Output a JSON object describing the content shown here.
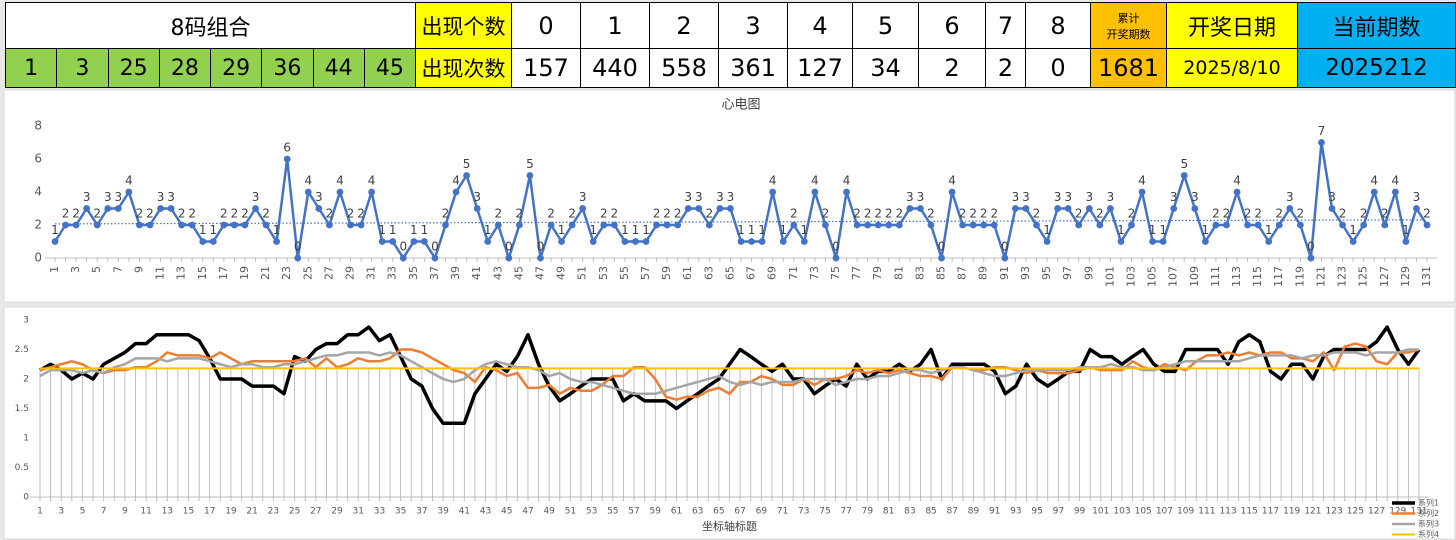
{
  "table": {
    "combo_label": "8码组合",
    "count_label": "出现个数",
    "counts_header": [
      0,
      1,
      2,
      3,
      4,
      5,
      6,
      7,
      8
    ],
    "total_label": [
      "累计",
      "开奖期数"
    ],
    "date_label": "开奖日期",
    "period_label": "当前期数",
    "combo": [
      1,
      3,
      25,
      28,
      29,
      36,
      44,
      45
    ],
    "times_label": "出现次数",
    "times": [
      157,
      440,
      558,
      361,
      127,
      34,
      2,
      2,
      0
    ],
    "total": 1681,
    "date": "2025/8/10",
    "period": 2025212
  },
  "chart_data": [
    {
      "type": "line",
      "title": "心电图",
      "color": "#4472c4",
      "markers": true,
      "data_labels": true,
      "trendline": "linear",
      "ylim": [
        0,
        8
      ],
      "yticks": [
        0,
        2,
        4,
        6,
        8
      ],
      "grid": false,
      "categories": [
        1,
        null,
        3,
        null,
        5,
        null,
        7,
        null,
        9,
        null,
        11,
        null,
        13,
        null,
        15,
        null,
        17,
        null,
        19,
        null,
        21,
        null,
        23,
        null,
        25,
        null,
        27,
        null,
        29,
        null,
        31,
        null,
        33,
        null,
        35,
        null,
        37,
        null,
        39,
        null,
        41,
        null,
        43,
        null,
        45,
        null,
        47,
        null,
        49,
        null,
        51,
        null,
        53,
        null,
        55,
        null,
        57,
        null,
        59,
        null,
        61,
        null,
        63,
        null,
        65,
        null,
        67,
        null,
        69,
        null,
        71,
        null,
        73,
        null,
        75,
        null,
        77,
        null,
        79,
        null,
        81,
        null,
        83,
        null,
        85,
        null,
        87,
        null,
        89,
        null,
        91,
        null,
        93,
        null,
        95,
        null,
        97,
        null,
        99,
        null,
        101,
        null,
        103,
        null,
        105,
        null,
        107,
        null,
        109,
        null,
        111,
        null,
        113,
        null,
        115,
        null,
        117,
        null,
        119,
        null,
        121,
        null,
        123,
        null,
        125,
        null,
        127,
        null,
        129,
        null,
        131
      ],
      "values": [
        1,
        2,
        2,
        3,
        2,
        3,
        3,
        4,
        2,
        2,
        3,
        3,
        2,
        2,
        1,
        1,
        2,
        2,
        2,
        3,
        2,
        1,
        6,
        0,
        4,
        3,
        2,
        4,
        2,
        2,
        4,
        1,
        1,
        0,
        1,
        1,
        0,
        2,
        4,
        5,
        3,
        1,
        2,
        0,
        2,
        5,
        0,
        2,
        1,
        2,
        3,
        1,
        2,
        2,
        1,
        1,
        1,
        2,
        2,
        2,
        3,
        3,
        2,
        3,
        3,
        1,
        1,
        1,
        4,
        1,
        2,
        1,
        4,
        2,
        0,
        4,
        2,
        2,
        2,
        2,
        2,
        3,
        3,
        2,
        0,
        4,
        2,
        2,
        2,
        2,
        0,
        3,
        3,
        2,
        1,
        3,
        3,
        2,
        3,
        2,
        3,
        1,
        2,
        4,
        1,
        1,
        3,
        5,
        3,
        1,
        2,
        2,
        4,
        2,
        2,
        1,
        2,
        3,
        2,
        0,
        7,
        3,
        2,
        1,
        2,
        4,
        2,
        4,
        1,
        3,
        2
      ]
    },
    {
      "type": "line",
      "x_label": "坐标轴标题",
      "legend": "bottom-right",
      "drop_lines": true,
      "ylim": [
        0,
        3
      ],
      "yticks": [
        0,
        0.5,
        1,
        1.5,
        2,
        2.5,
        3
      ],
      "grid": false,
      "categories": [
        1,
        null,
        3,
        null,
        5,
        null,
        7,
        null,
        9,
        null,
        11,
        null,
        13,
        null,
        15,
        null,
        17,
        null,
        19,
        null,
        21,
        null,
        23,
        null,
        25,
        null,
        27,
        null,
        29,
        null,
        31,
        null,
        33,
        null,
        35,
        null,
        37,
        null,
        39,
        null,
        41,
        null,
        43,
        null,
        45,
        null,
        47,
        null,
        49,
        null,
        51,
        null,
        53,
        null,
        55,
        null,
        57,
        null,
        59,
        null,
        61,
        null,
        63,
        null,
        65,
        null,
        67,
        null,
        69,
        null,
        71,
        null,
        73,
        null,
        75,
        null,
        77,
        null,
        79,
        null,
        81,
        null,
        83,
        null,
        85,
        null,
        87,
        null,
        89,
        null,
        91,
        null,
        93,
        null,
        95,
        null,
        97,
        null,
        99,
        null,
        101,
        null,
        103,
        null,
        105,
        null,
        107,
        null,
        109,
        null,
        111,
        null,
        113,
        null,
        115,
        null,
        117,
        null,
        119,
        null,
        121,
        null,
        123,
        null,
        125,
        null,
        127,
        null,
        129,
        null,
        131
      ],
      "series": [
        {
          "name": "系列1",
          "color": "#000000",
          "values": [
            2.15,
            2.25,
            2.15,
            2,
            2.1,
            2,
            2.25,
            2.35,
            2.45,
            2.6,
            2.6,
            2.75,
            2.75,
            2.75,
            2.75,
            2.65,
            2.35,
            2,
            2,
            2,
            1.88,
            1.88,
            1.88,
            1.75,
            2.38,
            2.3,
            2.5,
            2.6,
            2.6,
            2.75,
            2.75,
            2.88,
            2.65,
            2.75,
            2.38,
            2,
            1.88,
            1.5,
            1.25,
            1.25,
            1.25,
            1.75,
            2,
            2.25,
            2.13,
            2.38,
            2.75,
            2.25,
            1.88,
            1.63,
            1.75,
            1.88,
            2,
            2,
            2,
            1.63,
            1.75,
            1.63,
            1.63,
            1.63,
            1.5,
            1.63,
            1.75,
            1.88,
            2,
            2.25,
            2.5,
            2.38,
            2.25,
            2.13,
            2.25,
            2,
            2,
            1.75,
            1.88,
            2,
            1.88,
            2.25,
            2,
            2.13,
            2.13,
            2.25,
            2.13,
            2.25,
            2.5,
            2,
            2.25,
            2.25,
            2.25,
            2.25,
            2.13,
            1.75,
            1.88,
            2.25,
            2,
            1.88,
            2,
            2.13,
            2.13,
            2.5,
            2.38,
            2.38,
            2.25,
            2.38,
            2.5,
            2.25,
            2.13,
            2.13,
            2.5,
            2.5,
            2.5,
            2.5,
            2.25,
            2.63,
            2.75,
            2.63,
            2.13,
            2,
            2.25,
            2.25,
            2,
            2.38,
            2.5,
            2.5,
            2.5,
            2.5,
            2.63,
            2.88,
            2.5,
            2.25,
            2.5
          ]
        },
        {
          "name": "系列2",
          "color": "#ed7d31",
          "values": [
            2.15,
            2.2,
            2.25,
            2.3,
            2.25,
            2.15,
            2.1,
            2.15,
            2.15,
            2.2,
            2.2,
            2.3,
            2.45,
            2.4,
            2.4,
            2.4,
            2.35,
            2.45,
            2.35,
            2.25,
            2.3,
            2.3,
            2.3,
            2.3,
            2.3,
            2.35,
            2.2,
            2.35,
            2.2,
            2.25,
            2.35,
            2.3,
            2.3,
            2.35,
            2.5,
            2.5,
            2.45,
            2.35,
            2.25,
            2.15,
            2.1,
            1.95,
            2.2,
            2.15,
            2.05,
            2.1,
            1.85,
            1.85,
            1.9,
            1.75,
            1.85,
            1.8,
            1.8,
            1.9,
            2.05,
            2.05,
            2.2,
            2.2,
            2,
            1.7,
            1.65,
            1.7,
            1.7,
            1.8,
            1.85,
            1.75,
            1.95,
            1.95,
            2.05,
            2,
            1.9,
            1.9,
            2,
            1.9,
            2,
            2,
            2.05,
            2.15,
            2.1,
            2.15,
            2.1,
            2.15,
            2.1,
            2.05,
            2.05,
            2,
            2.2,
            2.2,
            2.15,
            2.15,
            2.2,
            2.2,
            2.15,
            2.1,
            2.15,
            2.1,
            2.1,
            2.1,
            2.15,
            2.2,
            2.15,
            2.15,
            2.15,
            2.3,
            2.2,
            2.15,
            2.25,
            2.2,
            2.15,
            2.3,
            2.4,
            2.4,
            2.45,
            2.4,
            2.45,
            2.4,
            2.45,
            2.45,
            2.35,
            2.35,
            2.3,
            2.45,
            2.15,
            2.55,
            2.6,
            2.55,
            2.3,
            2.25,
            2.45,
            2.45,
            2.5
          ]
        },
        {
          "name": "系列3",
          "color": "#a5a5a5",
          "values": [
            2.05,
            2.15,
            2.15,
            2.15,
            2.1,
            2.15,
            2.1,
            2.2,
            2.25,
            2.35,
            2.35,
            2.35,
            2.3,
            2.35,
            2.35,
            2.35,
            2.3,
            2.25,
            2.2,
            2.25,
            2.25,
            2.2,
            2.2,
            2.25,
            2.25,
            2.3,
            2.35,
            2.4,
            2.4,
            2.45,
            2.45,
            2.45,
            2.4,
            2.45,
            2.4,
            2.3,
            2.2,
            2.1,
            2,
            1.95,
            2,
            2.15,
            2.25,
            2.3,
            2.25,
            2.2,
            2.2,
            2.15,
            2.05,
            2.1,
            2,
            1.95,
            1.95,
            1.9,
            1.85,
            1.8,
            1.75,
            1.75,
            1.75,
            1.8,
            1.85,
            1.9,
            1.95,
            2,
            2.05,
            1.95,
            1.9,
            1.95,
            1.9,
            1.95,
            1.95,
            1.95,
            2,
            2,
            2,
            1.9,
            1.95,
            2,
            2,
            2.05,
            2.05,
            2.1,
            2.15,
            2.15,
            2.1,
            2.15,
            2.2,
            2.2,
            2.15,
            2.1,
            2.05,
            2.05,
            2.1,
            2.15,
            2.15,
            2.15,
            2.15,
            2.15,
            2.2,
            2.2,
            2.2,
            2.25,
            2.2,
            2.2,
            2.15,
            2.15,
            2.2,
            2.25,
            2.3,
            2.3,
            2.3,
            2.3,
            2.3,
            2.3,
            2.35,
            2.4,
            2.4,
            2.4,
            2.4,
            2.35,
            2.4,
            2.4,
            2.45,
            2.45,
            2.45,
            2.4,
            2.45,
            2.45,
            2.45,
            2.5,
            2.5
          ]
        },
        {
          "name": "系列4",
          "color": "#ffc000",
          "values": [
            2.18,
            2.18,
            2.18,
            2.18,
            2.18,
            2.18,
            2.18,
            2.18,
            2.18,
            2.18,
            2.18,
            2.18,
            2.18,
            2.18,
            2.18,
            2.18,
            2.18,
            2.18,
            2.18,
            2.18,
            2.18,
            2.18,
            2.18,
            2.18,
            2.18,
            2.18,
            2.18,
            2.18,
            2.18,
            2.18,
            2.18,
            2.18,
            2.18,
            2.18,
            2.18,
            2.18,
            2.18,
            2.18,
            2.18,
            2.18,
            2.18,
            2.18,
            2.18,
            2.18,
            2.18,
            2.18,
            2.18,
            2.18,
            2.18,
            2.18,
            2.18,
            2.18,
            2.18,
            2.18,
            2.18,
            2.18,
            2.18,
            2.18,
            2.18,
            2.18,
            2.18,
            2.18,
            2.18,
            2.18,
            2.18,
            2.18,
            2.18,
            2.18,
            2.18,
            2.18,
            2.18,
            2.18,
            2.18,
            2.18,
            2.18,
            2.18,
            2.18,
            2.18,
            2.18,
            2.18,
            2.18,
            2.18,
            2.18,
            2.18,
            2.18,
            2.18,
            2.18,
            2.18,
            2.18,
            2.18,
            2.18,
            2.18,
            2.18,
            2.18,
            2.18,
            2.18,
            2.18,
            2.18,
            2.18,
            2.18,
            2.18,
            2.18,
            2.18,
            2.18,
            2.18,
            2.18,
            2.18,
            2.18,
            2.18,
            2.18,
            2.18,
            2.18,
            2.18,
            2.18,
            2.18,
            2.18,
            2.18,
            2.18,
            2.18,
            2.18,
            2.18,
            2.18,
            2.18,
            2.18,
            2.18,
            2.18,
            2.18,
            2.18,
            2.18,
            2.18,
            2.18
          ]
        }
      ]
    }
  ]
}
